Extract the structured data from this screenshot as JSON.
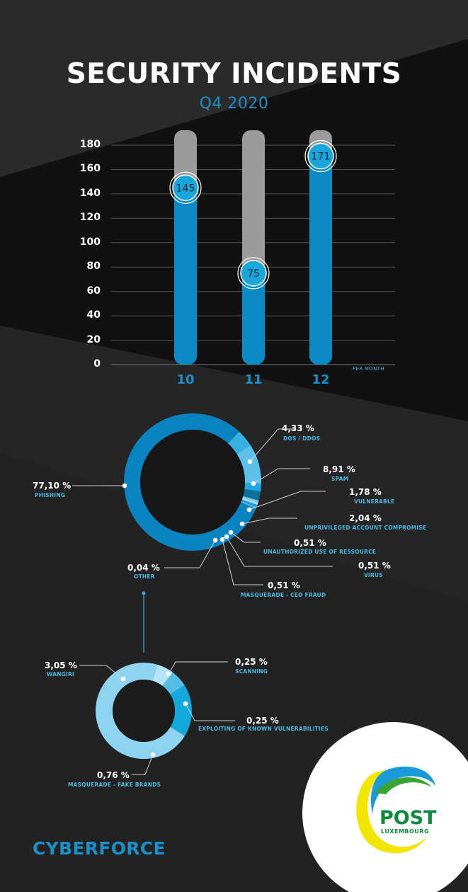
{
  "header": {
    "title": "SECURITY INCIDENTS",
    "subtitle": "Q4 2020"
  },
  "colors": {
    "accent": "#1d8fc8",
    "bar_fill": "#0b8ac5",
    "bar_track": "#9b9b9b",
    "label_blue": "#4db6e0",
    "logo_green": "#0b8a3e",
    "logo_yellow": "#f2e600"
  },
  "chart_data": [
    {
      "type": "bar",
      "title": "SECURITY INCIDENTS",
      "subtitle": "Q4 2020",
      "categories": [
        "10",
        "11",
        "12"
      ],
      "values": [
        145,
        75,
        171
      ],
      "data_labels": [
        "145",
        "75",
        "171"
      ],
      "ylim": [
        0,
        180
      ],
      "yticks": [
        "0",
        "20",
        "40",
        "60",
        "80",
        "100",
        "120",
        "140",
        "160",
        "180"
      ],
      "xlabel": "PER MONTH",
      "ylabel": "",
      "grid": true
    },
    {
      "type": "pie",
      "style": "donut",
      "slices": [
        {
          "label": "PHISHING",
          "value": 77.1,
          "text": "77,10 %",
          "color": "#0b83c1"
        },
        {
          "label": "DOS / DDOS",
          "value": 4.33,
          "text": "4,33 %",
          "color": "#39aee0"
        },
        {
          "label": "SPAM",
          "value": 8.91,
          "text": "8,91 %",
          "color": "#5cc0ea"
        },
        {
          "label": "VULNERABLE",
          "value": 1.78,
          "text": "1,78 %",
          "color": "#20a8e0"
        },
        {
          "label": "UNPRIVILEGED ACCOUNT COMPROMISE",
          "value": 2.04,
          "text": "2,04 %",
          "color": "#0e6e9c"
        },
        {
          "label": "UNAUTHORIZED USE OF RESSOURCE",
          "value": 0.51,
          "text": "0,51 %",
          "color": "#7fcff0"
        },
        {
          "label": "VIRUS",
          "value": 0.51,
          "text": "0,51 %",
          "color": "#a9def5"
        },
        {
          "label": "MASQUERADE - CEO FRAUD",
          "value": 0.51,
          "text": "0,51 %",
          "color": "#1aa0d8"
        },
        {
          "label": "OTHER",
          "value": 0.04,
          "text": "0,04 %",
          "color": "#5ab8e3"
        }
      ]
    },
    {
      "type": "pie",
      "style": "donut",
      "slices": [
        {
          "label": "WANGIRI",
          "value": 3.05,
          "text": "3,05 %",
          "color": "#8fd3f2"
        },
        {
          "label": "SCANNING",
          "value": 0.25,
          "text": "0,25 %",
          "color": "#b6e4f7"
        },
        {
          "label": "EXPLOITING OF KNOWN VULNERABILITIES",
          "value": 0.25,
          "text": "0,25 %",
          "color": "#55bde6"
        },
        {
          "label": "MASQUERADE - FAKE BRANDS",
          "value": 0.76,
          "text": "0,76 %",
          "color": "#14a9dd"
        }
      ]
    }
  ],
  "footer": {
    "brand": "CYBERFORCE",
    "logo_name": "POST",
    "logo_sub": "LUXEMBOURG"
  }
}
